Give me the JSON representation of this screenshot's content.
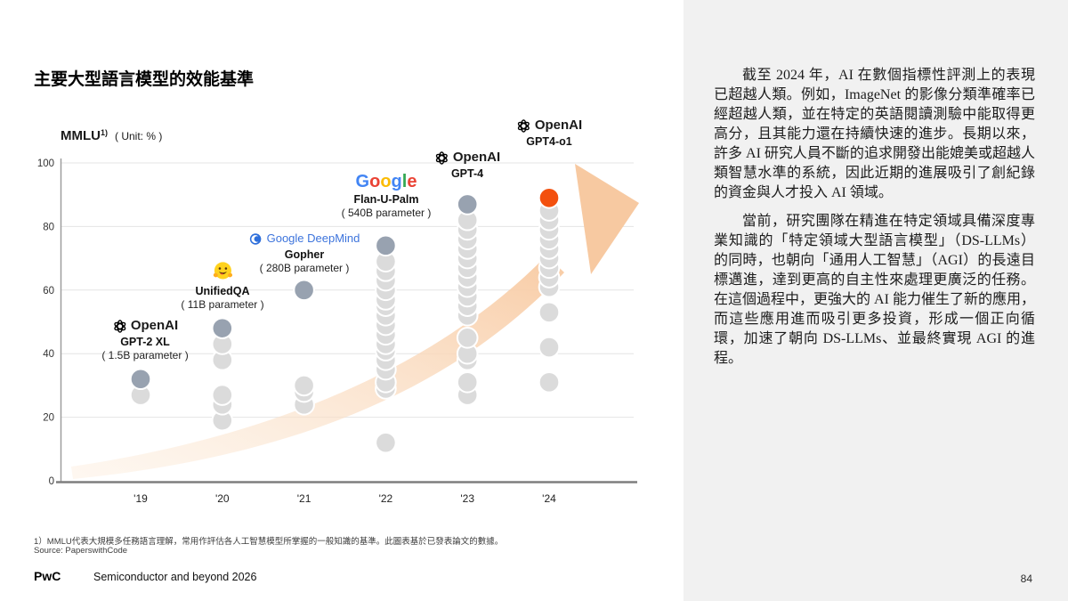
{
  "slide_title": "主要大型語言模型的效能基準",
  "chart_data": {
    "type": "scatter",
    "metric": "MMLU",
    "metric_footnote_ref": "1)",
    "unit_label": "( Unit: % )",
    "categories": [
      "'19",
      "'20",
      "'21",
      "'22",
      "'23",
      "'24"
    ],
    "ylim": [
      0,
      100
    ],
    "yticks": [
      0,
      20,
      40,
      60,
      80,
      100
    ],
    "grid": "horizontal",
    "legend": "none",
    "colors": {
      "light_point": "#DBDBDB",
      "dark_point": "#98A2B0",
      "highlight_point": "#F3500E",
      "arrow_fill": "#F8CBA4"
    },
    "columns": [
      {
        "year": "'19",
        "model": "GPT-2 XL",
        "values": [
          27,
          32
        ],
        "top_color": "dark_point"
      },
      {
        "year": "'20",
        "model": "UnifiedQA",
        "values": [
          19,
          24,
          27,
          38,
          43,
          48
        ],
        "top_color": "dark_point"
      },
      {
        "year": "'21",
        "model": "Gopher",
        "values": [
          24,
          28,
          30,
          60
        ],
        "top_color": "dark_point"
      },
      {
        "year": "'22",
        "model": "Flan-U-Palm",
        "values": [
          12,
          29,
          31,
          35,
          38,
          41,
          43,
          46,
          49,
          52,
          55,
          57,
          60,
          63,
          66,
          69,
          74
        ],
        "top_color": "dark_point"
      },
      {
        "year": "'23",
        "model": "GPT-4",
        "values": [
          27,
          31,
          38,
          40,
          45,
          52,
          55,
          58,
          61,
          64,
          67,
          70,
          73,
          76,
          79,
          82,
          87
        ],
        "top_color": "dark_point"
      },
      {
        "year": "'24",
        "model": "GPT4-o1",
        "values": [
          31,
          42,
          53,
          61,
          64,
          67,
          70,
          73,
          76,
          79,
          82,
          85,
          89
        ],
        "top_color": "highlight_point"
      }
    ]
  },
  "annotations": [
    {
      "brand": "OpenAI",
      "name": "GPT-2 XL",
      "param": "( 1.5B parameter )"
    },
    {
      "brand_icon": "hugging-face-emoji",
      "name": "UnifiedQA",
      "param": "( 11B parameter )"
    },
    {
      "brand": "Google DeepMind",
      "name": "Gopher",
      "param": "( 280B parameter )"
    },
    {
      "brand": "Google",
      "name": "Flan-U-Palm",
      "param": "( 540B parameter )",
      "brand_letters": [
        {
          "ch": "G",
          "color": "#4285F4"
        },
        {
          "ch": "o",
          "color": "#EA4335"
        },
        {
          "ch": "o",
          "color": "#FBBC05"
        },
        {
          "ch": "g",
          "color": "#4285F4"
        },
        {
          "ch": "l",
          "color": "#34A853"
        },
        {
          "ch": "e",
          "color": "#EA4335"
        }
      ]
    },
    {
      "brand": "OpenAI",
      "name": "GPT-4"
    },
    {
      "brand": "OpenAI",
      "name": "GPT4-o1"
    }
  ],
  "footnote": "1）MMLU代表大規模多任務語言理解，常用作評估各人工智慧模型所掌握的一般知識的基準。此圖表基於已發表論文的數據。",
  "source": "Source: PaperswithCode",
  "sidebar": {
    "paragraphs": [
      "截至 2024 年，AI 在數個指標性評測上的表現已超越人類。例如，ImageNet 的影像分類準確率已經超越人類，並在特定的英語閱讀測驗中能取得更高分，且其能力還在持續快速的進步。長期以來，許多 AI 研究人員不斷的追求開發出能媲美或超越人類智慧水準的系統，因此近期的進展吸引了創紀錄的資金與人才投入 AI 領域。",
      "當前，研究團隊在精進在特定領域具備深度專業知識的「特定領域大型語言模型」（DS-LLMs）的同時，也朝向「通用人工智慧」（AGI）的長遠目標邁進，達到更高的自主性來處理更廣泛的任務。在這個過程中，更強大的 AI 能力催生了新的應用，而這些應用進而吸引更多投資，形成一個正向循環，加速了朝向 DS-LLMs、並最終實現 AGI 的進程。"
    ]
  },
  "footer": {
    "brand": "PwC",
    "doc_title": "Semiconductor and beyond 2026",
    "page_number": "84"
  }
}
